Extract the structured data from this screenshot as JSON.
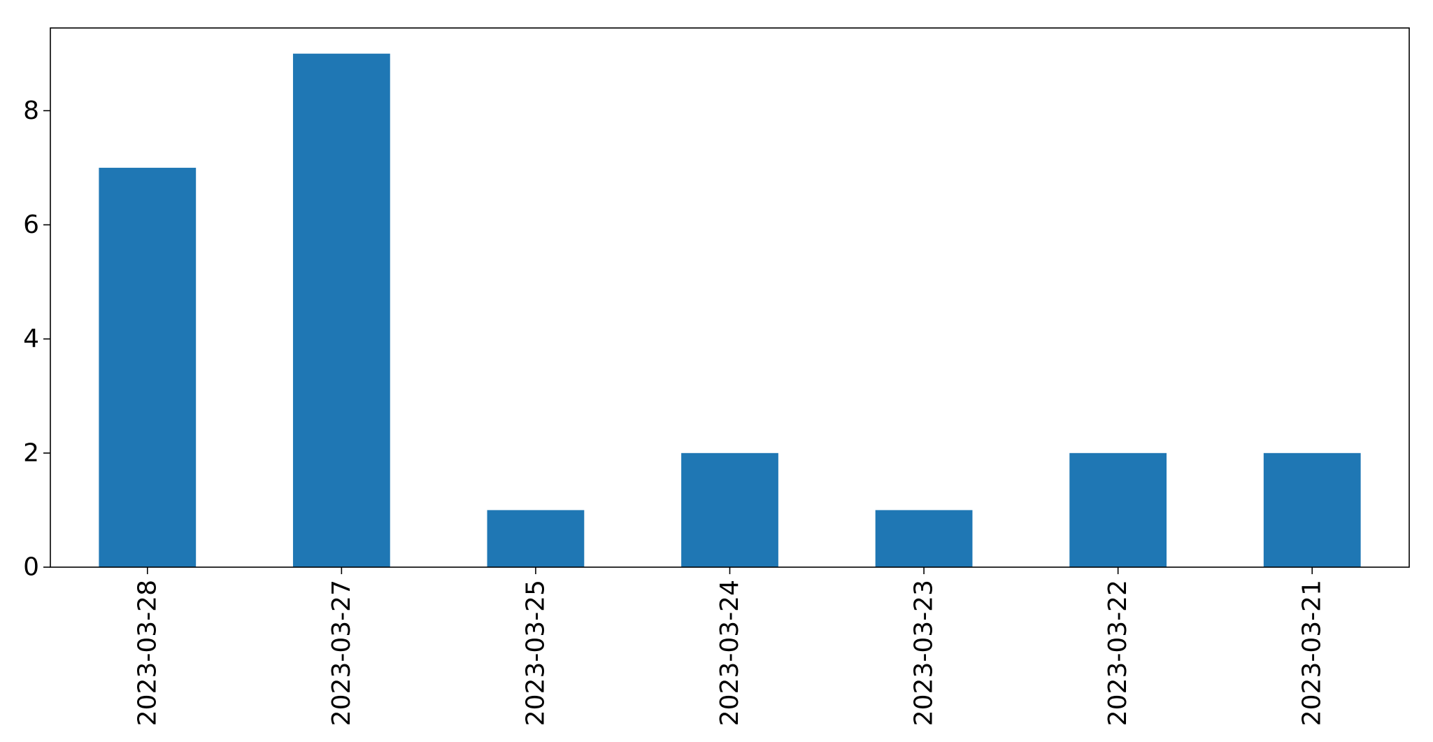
{
  "chart_data": {
    "type": "bar",
    "title": "",
    "xlabel": "",
    "ylabel": "",
    "categories": [
      "2023-03-28",
      "2023-03-27",
      "2023-03-25",
      "2023-03-24",
      "2023-03-23",
      "2023-03-22",
      "2023-03-21"
    ],
    "values": [
      7,
      9,
      1,
      2,
      1,
      2,
      2
    ],
    "ylim": [
      0,
      9.45
    ],
    "yticks": [
      0,
      2,
      4,
      6,
      8
    ],
    "grid": false,
    "legend": "none",
    "bar_color": "#1f77b4",
    "x_tick_rotation": "vertical"
  }
}
